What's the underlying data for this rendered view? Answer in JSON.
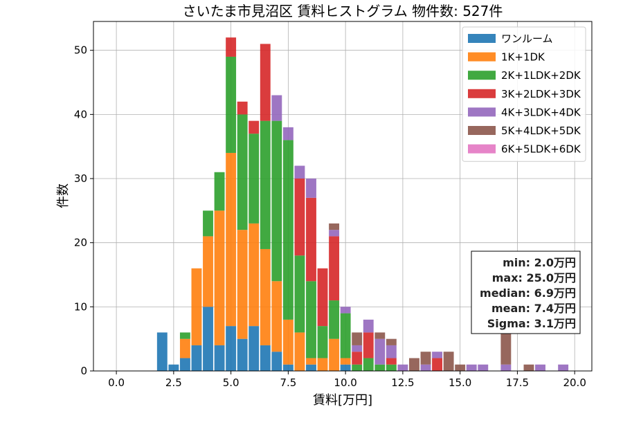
{
  "chart_data": {
    "type": "bar",
    "stacked": true,
    "title": "さいたま市見沼区 賃料ヒストグラム 物件数: 527件",
    "xlabel": "賃料[万円]",
    "ylabel": "件数",
    "xlim": [
      -1.0,
      20.75
    ],
    "ylim": [
      0,
      54.5
    ],
    "xticks": [
      0.0,
      2.5,
      5.0,
      7.5,
      10.0,
      12.5,
      15.0,
      17.5,
      20.0
    ],
    "xtick_labels": [
      "0.0",
      "2.5",
      "5.0",
      "7.5",
      "10.0",
      "12.5",
      "15.0",
      "17.5",
      "20.0"
    ],
    "yticks": [
      0,
      10,
      20,
      30,
      40,
      50
    ],
    "ytick_labels": [
      "0",
      "10",
      "20",
      "30",
      "40",
      "50"
    ],
    "grid": true,
    "legend_position": "top-right",
    "bin_width": 0.5,
    "bin_starts": [
      1.75,
      2.25,
      2.75,
      3.25,
      3.75,
      4.25,
      4.75,
      5.25,
      5.75,
      6.25,
      6.75,
      7.25,
      7.75,
      8.25,
      8.75,
      9.25,
      9.75,
      10.25,
      10.75,
      11.25,
      11.75,
      12.25,
      12.75,
      13.25,
      13.75,
      14.25,
      14.75,
      15.25,
      15.75,
      16.25,
      16.75,
      17.25,
      17.75,
      18.25,
      18.75,
      19.25,
      19.75
    ],
    "series": [
      {
        "name": "ワンルーム",
        "color": "#1f77b4",
        "values": [
          6,
          1,
          2,
          4,
          10,
          4,
          7,
          5,
          7,
          4,
          3,
          1,
          0,
          1,
          0,
          0,
          1,
          0,
          0,
          0,
          0,
          0,
          0,
          0,
          0,
          0,
          0,
          0,
          0,
          0,
          0,
          0,
          0,
          0,
          0,
          0,
          0
        ]
      },
      {
        "name": "1K+1DK",
        "color": "#ff7f0e",
        "values": [
          0,
          0,
          3,
          12,
          11,
          21,
          27,
          17,
          16,
          15,
          11,
          7,
          6,
          1,
          2,
          5,
          1,
          0,
          0,
          0,
          0,
          0,
          0,
          0,
          0,
          0,
          0,
          0,
          0,
          0,
          0,
          0,
          0,
          0,
          0,
          0,
          0
        ]
      },
      {
        "name": "2K+1LDK+2DK",
        "color": "#2ca02c",
        "values": [
          0,
          0,
          1,
          0,
          4,
          6,
          15,
          18,
          14,
          20,
          25,
          28,
          12,
          12,
          5,
          6,
          7,
          1,
          2,
          1,
          1,
          0,
          0,
          0,
          0,
          0,
          0,
          0,
          0,
          0,
          0,
          0,
          0,
          0,
          0,
          0,
          0
        ]
      },
      {
        "name": "3K+2LDK+3DK",
        "color": "#d62728",
        "values": [
          0,
          0,
          0,
          0,
          0,
          0,
          3,
          2,
          2,
          12,
          0,
          0,
          12,
          13,
          9,
          10,
          0,
          2,
          4,
          0,
          1,
          0,
          0,
          0,
          2,
          0,
          0,
          0,
          0,
          0,
          0,
          0,
          0,
          0,
          0,
          0,
          0
        ]
      },
      {
        "name": "4K+3LDK+4DK",
        "color": "#9467bd",
        "values": [
          0,
          0,
          0,
          0,
          0,
          0,
          0,
          0,
          0,
          0,
          4,
          2,
          2,
          3,
          0,
          1,
          1,
          1,
          2,
          4,
          2,
          1,
          0,
          1,
          1,
          0,
          0,
          1,
          1,
          0,
          1,
          0,
          0,
          1,
          0,
          1,
          0
        ]
      },
      {
        "name": "5K+4LDK+5DK",
        "color": "#8c564b",
        "values": [
          0,
          0,
          0,
          0,
          0,
          0,
          0,
          0,
          0,
          0,
          0,
          0,
          0,
          0,
          0,
          1,
          0,
          2,
          0,
          1,
          1,
          0,
          2,
          2,
          0,
          3,
          1,
          0,
          0,
          0,
          5,
          0,
          1,
          0,
          0,
          0,
          0
        ]
      },
      {
        "name": "6K+5LDK+6DK",
        "color": "#e377c2",
        "values": [
          0,
          0,
          0,
          0,
          0,
          0,
          0,
          0,
          0,
          0,
          0,
          0,
          0,
          0,
          0,
          0,
          0,
          0,
          0,
          0,
          0,
          0,
          0,
          0,
          0,
          0,
          0,
          0,
          0,
          0,
          0,
          0,
          0,
          0,
          0,
          0,
          0
        ]
      }
    ],
    "stats": [
      "min: 2.0万円",
      "max: 25.0万円",
      "median: 6.9万円",
      "mean: 7.4万円",
      "Sigma: 3.1万円"
    ]
  }
}
